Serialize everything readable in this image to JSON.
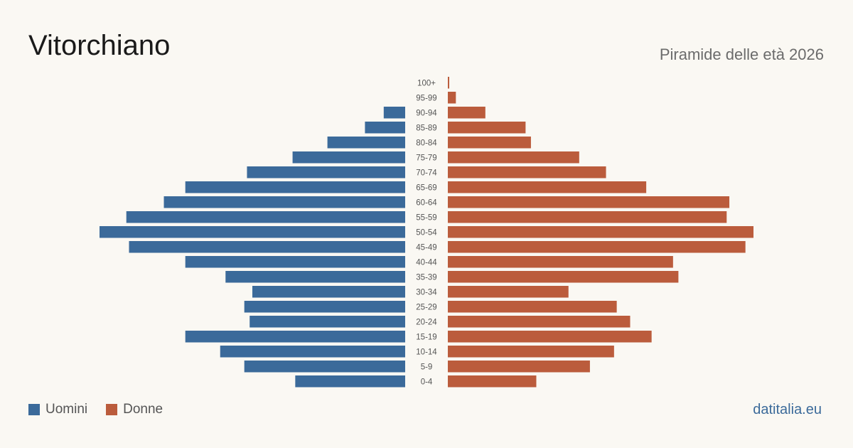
{
  "header": {
    "title": "Vitorchiano",
    "subtitle": "Piramide delle età 2026"
  },
  "legend": {
    "men_label": "Uomini",
    "women_label": "Donne"
  },
  "footer": {
    "brand": "datitalia.eu"
  },
  "colors": {
    "men": "#3b6a9a",
    "women": "#bb5c3c"
  },
  "chart_data": {
    "type": "bar",
    "orientation": "horizontal-pyramid",
    "categories": [
      "100+",
      "95-99",
      "90-94",
      "85-89",
      "80-84",
      "75-79",
      "70-74",
      "65-69",
      "60-64",
      "55-59",
      "50-54",
      "45-49",
      "40-44",
      "35-39",
      "30-34",
      "25-29",
      "20-24",
      "15-19",
      "10-14",
      "5-9",
      "0-4"
    ],
    "series": [
      {
        "name": "Uomini",
        "values": [
          0,
          0,
          8,
          15,
          29,
          42,
          59,
          82,
          90,
          104,
          114,
          103,
          82,
          67,
          57,
          60,
          58,
          82,
          69,
          60,
          41
        ]
      },
      {
        "name": "Donne",
        "values": [
          0.5,
          3,
          14,
          29,
          31,
          49,
          59,
          74,
          105,
          104,
          114,
          111,
          84,
          86,
          45,
          63,
          68,
          76,
          62,
          53,
          33
        ]
      }
    ],
    "legend_position": "bottom-left",
    "grid": false
  }
}
